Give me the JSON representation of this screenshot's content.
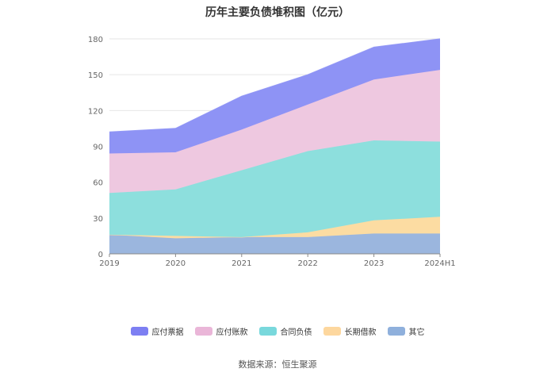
{
  "title": "历年主要负债堆积图（亿元）",
  "source": "数据来源：恒生聚源",
  "chart_data": {
    "type": "area",
    "stacked": true,
    "categories": [
      "2019",
      "2020",
      "2021",
      "2022",
      "2023",
      "2024H1"
    ],
    "ylim": [
      0,
      180
    ],
    "yticks": [
      0,
      30,
      60,
      90,
      120,
      150,
      180
    ],
    "grid": true,
    "legend_position": "bottom",
    "series": [
      {
        "name": "其它",
        "color": "#9bb6de",
        "values": [
          16,
          13,
          14,
          14,
          17,
          17
        ]
      },
      {
        "name": "长期借款",
        "color": "#fcdca2",
        "values": [
          0,
          2,
          0,
          4,
          11,
          14
        ]
      },
      {
        "name": "合同负债",
        "color": "#8ddfdd",
        "values": [
          35,
          39,
          56,
          68,
          67,
          63
        ]
      },
      {
        "name": "应付账款",
        "color": "#eec8e0",
        "values": [
          33,
          31,
          34,
          39,
          51,
          60
        ]
      },
      {
        "name": "应付票据",
        "color": "#8e93f5",
        "values": [
          18,
          20,
          28,
          25,
          27,
          26
        ]
      }
    ],
    "legend_order": [
      "应付票据",
      "应付账款",
      "合同负债",
      "长期借款",
      "其它"
    ],
    "legend_colors": {
      "应付票据": "#7d7ff2",
      "应付账款": "#eab6d8",
      "合同负债": "#79d8dc",
      "长期借款": "#fdd79e",
      "其它": "#8fb0dc"
    }
  }
}
